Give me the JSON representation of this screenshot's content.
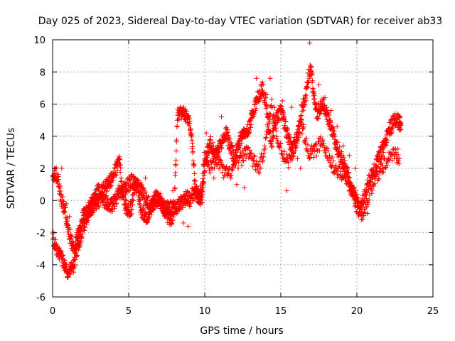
{
  "chart_data": {
    "type": "scatter",
    "title": "Day 025 of 2023, Sidereal Day-to-day VTEC variation (SDTVAR) for receiver ab33",
    "xlabel": "GPS time / hours",
    "ylabel": "SDTVAR / TECUs",
    "xlim": [
      0,
      25
    ],
    "ylim": [
      -6,
      10
    ],
    "xticks": [
      0,
      5,
      10,
      15,
      20,
      25
    ],
    "yticks": [
      -6,
      -4,
      -2,
      0,
      2,
      4,
      6,
      8,
      10
    ],
    "grid": true,
    "marker": "+",
    "series": [
      {
        "name": "SDTVAR",
        "color": "#ff0000",
        "trace": {
          "x": [
            0.0,
            0.2,
            0.4,
            0.6,
            0.8,
            1.0,
            1.2,
            1.4,
            1.6,
            1.8,
            2.0,
            2.2,
            2.4,
            2.6,
            2.8,
            3.0,
            3.2,
            3.4,
            3.6,
            3.8,
            4.0,
            4.2,
            4.4,
            4.6,
            4.8,
            5.0,
            5.2,
            5.4,
            5.6,
            5.8,
            6.0,
            6.2,
            6.4,
            6.6,
            6.8,
            7.0,
            7.2,
            7.4,
            7.6,
            7.8,
            8.0,
            8.2,
            8.4,
            8.6,
            8.8,
            9.0,
            9.2,
            9.4,
            9.6,
            9.8,
            10.0,
            10.2,
            10.4,
            10.6,
            10.8,
            11.0,
            11.2,
            11.4,
            11.6,
            11.8,
            12.0,
            12.2,
            12.4,
            12.6,
            12.8,
            13.0,
            13.2,
            13.4,
            13.6,
            13.8,
            14.0,
            14.2,
            14.4,
            14.6,
            14.8,
            15.0,
            15.2,
            15.4,
            15.6,
            15.8,
            16.0,
            16.2,
            16.4,
            16.6,
            16.8,
            17.0,
            17.2,
            17.4,
            17.6,
            17.8,
            18.0,
            18.2,
            18.4,
            18.6,
            18.8,
            19.0,
            19.2,
            19.4,
            19.6,
            19.8,
            20.0,
            20.2,
            20.4,
            20.6,
            20.8,
            21.0,
            21.2,
            21.4,
            21.6,
            21.8,
            22.0,
            22.2,
            22.4,
            22.6,
            22.8,
            22.9
          ],
          "y": [
            1.2,
            1.8,
            1.0,
            0.0,
            -0.6,
            -1.6,
            -2.4,
            -3.2,
            -2.4,
            -1.8,
            -1.0,
            -0.8,
            -0.4,
            -0.2,
            0.3,
            0.6,
            0.6,
            0.8,
            1.0,
            1.2,
            1.6,
            2.0,
            2.4,
            0.2,
            -0.4,
            -0.6,
            -0.4,
            1.0,
            0.9,
            0.8,
            0.4,
            0.0,
            -0.4,
            -0.2,
            0.0,
            0.2,
            -0.4,
            -0.4,
            -0.2,
            -0.6,
            -0.4,
            -0.4,
            -0.2,
            0.0,
            0.2,
            0.0,
            0.4,
            0.6,
            0.2,
            0.0,
            2.0,
            3.2,
            3.6,
            3.0,
            2.8,
            3.4,
            3.8,
            4.2,
            3.6,
            3.0,
            2.6,
            3.4,
            4.0,
            4.4,
            4.2,
            4.8,
            5.6,
            6.2,
            6.6,
            7.0,
            6.2,
            4.6,
            3.6,
            4.8,
            5.2,
            5.6,
            5.0,
            4.2,
            3.6,
            3.0,
            3.6,
            4.6,
            5.6,
            6.4,
            7.6,
            8.4,
            6.2,
            5.4,
            5.8,
            6.0,
            5.6,
            4.8,
            4.2,
            3.6,
            3.0,
            2.6,
            2.2,
            1.6,
            0.8,
            0.2,
            -0.4,
            -0.6,
            0.0,
            0.6,
            1.2,
            1.6,
            2.0,
            2.6,
            3.0,
            3.6,
            4.0,
            4.6,
            4.9,
            5.0,
            4.8,
            4.8
          ]
        },
        "secondary_trace": {
          "x": [
            0.0,
            0.2,
            0.4,
            0.6,
            0.8,
            1.0,
            1.2,
            1.4,
            1.6,
            1.8,
            2.0,
            2.2,
            2.4,
            2.6,
            2.8,
            3.0,
            3.2,
            3.4,
            3.6,
            3.8,
            4.0,
            4.2,
            4.4,
            4.6,
            4.8,
            5.0,
            5.2,
            5.4,
            5.6,
            5.8,
            6.0,
            6.2,
            6.4,
            6.6,
            6.8,
            7.0,
            7.2,
            7.4,
            7.6,
            7.8,
            8.0,
            8.2,
            8.4,
            8.6,
            8.8,
            9.0,
            9.2,
            9.4,
            9.6,
            9.8,
            10.0,
            10.4,
            10.8,
            11.2,
            11.6,
            12.0,
            12.4,
            12.8,
            13.2,
            13.6,
            14.0,
            14.4,
            14.8,
            15.2,
            15.6,
            16.0,
            16.4,
            16.8,
            17.2,
            17.6,
            18.0,
            18.4,
            18.8,
            19.2,
            19.6,
            20.0,
            20.4,
            20.8,
            21.2,
            21.6,
            22.0,
            22.4,
            22.8
          ],
          "y": [
            -2.2,
            -2.8,
            -3.2,
            -3.6,
            -4.0,
            -4.4,
            -4.2,
            -4.0,
            -3.0,
            -2.4,
            -1.6,
            -1.2,
            -0.6,
            -0.4,
            -0.2,
            0.0,
            0.2,
            0.0,
            -0.2,
            -0.4,
            -0.2,
            0.2,
            0.6,
            0.6,
            0.8,
            1.0,
            1.2,
            1.0,
            0.8,
            -0.6,
            -0.8,
            -1.0,
            -0.6,
            -0.2,
            0.2,
            0.0,
            -0.6,
            -0.8,
            -1.0,
            -1.2,
            -0.4,
            5.4,
            5.5,
            5.4,
            5.3,
            5.0,
            3.0,
            0.6,
            0.2,
            0.4,
            3.0,
            2.0,
            2.6,
            1.8,
            1.6,
            2.2,
            2.6,
            3.2,
            2.4,
            2.0,
            3.6,
            6.0,
            3.6,
            2.8,
            2.4,
            4.0,
            4.6,
            3.0,
            3.0,
            3.6,
            3.0,
            2.2,
            1.8,
            1.4,
            0.8,
            0.0,
            -1.0,
            0.4,
            1.4,
            2.0,
            2.6,
            3.0,
            2.6
          ]
        },
        "scatter_points": {
          "x": [
            0.1,
            0.6,
            0.9,
            1.1,
            1.5,
            2.1,
            2.6,
            3.3,
            3.9,
            4.4,
            4.9,
            5.4,
            6.1,
            6.7,
            7.3,
            7.9,
            8.6,
            8.9,
            9.3,
            9.7,
            10.1,
            10.6,
            11.1,
            11.5,
            12.1,
            12.6,
            13.1,
            13.4,
            13.7,
            14.1,
            14.3,
            14.6,
            15.1,
            15.4,
            15.7,
            16.1,
            16.3,
            16.7,
            16.9,
            17.1,
            17.5,
            17.9,
            18.3,
            18.7,
            19.1,
            19.5,
            19.9,
            20.3,
            20.7,
            21.1,
            21.5,
            21.9,
            22.3,
            22.7
          ],
          "y": [
            1.6,
            2.0,
            -0.2,
            -1.0,
            -2.8,
            -0.6,
            0.2,
            0.9,
            1.4,
            2.2,
            -0.8,
            1.1,
            1.4,
            0.2,
            -0.2,
            0.6,
            -1.4,
            -1.6,
            0.4,
            0.9,
            4.2,
            1.4,
            5.2,
            4.4,
            1.0,
            0.8,
            5.6,
            7.6,
            7.2,
            6.6,
            7.6,
            5.8,
            6.2,
            0.6,
            5.8,
            2.6,
            2.0,
            7.0,
            9.8,
            6.8,
            7.2,
            6.4,
            5.6,
            4.6,
            3.4,
            2.8,
            2.0,
            -1.2,
            -0.8,
            1.0,
            1.8,
            3.8,
            4.2,
            3.2
          ]
        }
      }
    ]
  }
}
